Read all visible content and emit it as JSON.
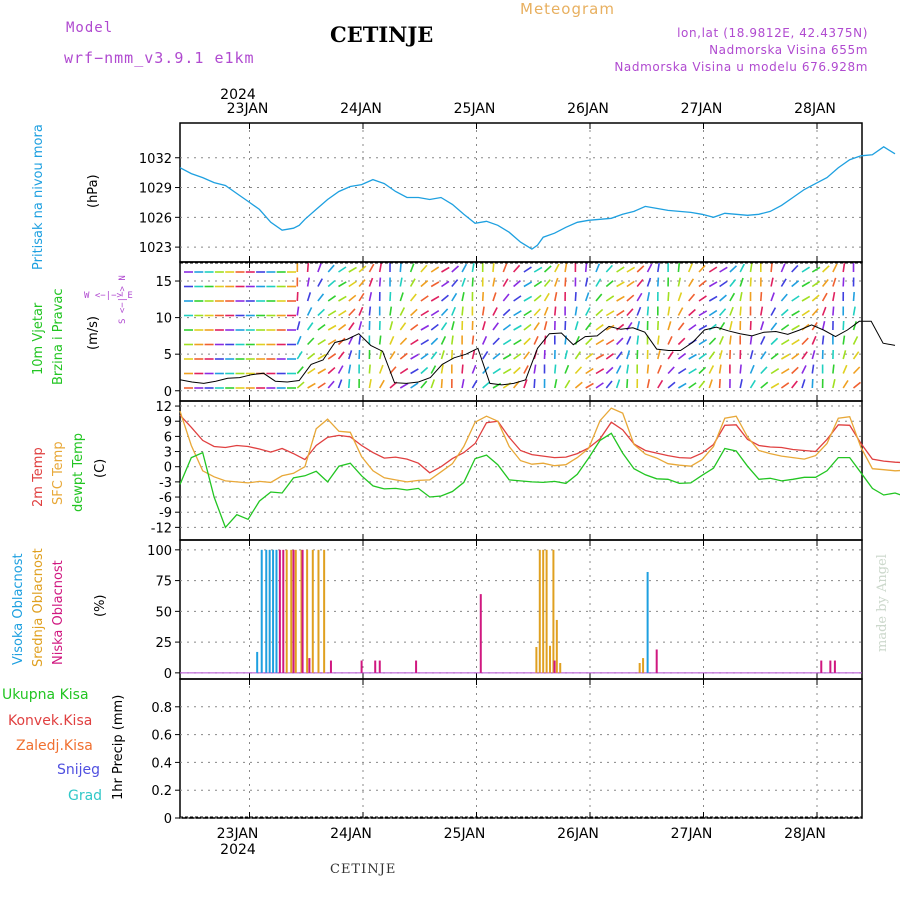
{
  "header": {
    "model_label": "Model",
    "model_version": "wrf−nmm_v3.9.1  e1km",
    "title": "CETINJE",
    "meteogram_label": "Meteogram",
    "lonlat": "lon,lat (18.9812E, 42.4375N)",
    "altitude": "Nadmorska Visina 655m",
    "model_altitude": "Nadmorska Visina u modelu 676.928m"
  },
  "footer": "CETINJE",
  "watermark": "made by Angel",
  "colors": {
    "pressure": "#1ea0e0",
    "wind_label": "#22c522",
    "temp2m": "#e04040",
    "sfc_temp": "#e8a838",
    "dewpt": "#22c522",
    "high_cloud": "#1ea0e0",
    "mid_cloud": "#e0a020",
    "low_cloud": "#d01880",
    "purple": "#b04ad0"
  },
  "axis": {
    "year_top": "2024",
    "year_bottom": "2024",
    "dates": [
      "23JAN",
      "24JAN",
      "25JAN",
      "26JAN",
      "27JAN",
      "28JAN"
    ]
  },
  "panel_labels": {
    "pressure": {
      "name": "Pritisak na nivou mora",
      "unit": "(hPa)"
    },
    "wind": {
      "name1": "10m Vjetar",
      "name2": "Brzina i Pravac",
      "unit": "(m/s)",
      "compass": "W <−|−> E",
      "compass2": "S <−|−> N"
    },
    "temp": {
      "t2m": "2m Temp",
      "sfc": "SFC Temp",
      "dew": "dewpt Temp",
      "unit": "(C)"
    },
    "cloud": {
      "high": "Visoka Oblacnost",
      "mid": "Srednja Oblacnost",
      "low": "Niska Oblacnost",
      "unit": "(%)"
    },
    "precip": {
      "axis": "1hr Precip (mm)",
      "legend": [
        "Ukupna Kisa",
        "Konvek.Kisa",
        "Zaledj.Kisa",
        "Snijeg",
        "Grad"
      ],
      "legend_colors": [
        "#22c522",
        "#e04040",
        "#f07030",
        "#5050e0",
        "#30c8c8"
      ]
    }
  },
  "chart_data": [
    {
      "type": "line",
      "name": "pressure",
      "ylim": [
        1021.5,
        1035.5
      ],
      "yticks": [
        1023,
        1026,
        1029,
        1032
      ],
      "x": [
        0,
        0.1,
        0.2,
        0.3,
        0.4,
        0.5,
        0.6,
        0.7,
        0.8,
        0.9,
        1.0,
        1.05,
        1.1,
        1.2,
        1.3,
        1.4,
        1.5,
        1.6,
        1.7,
        1.8,
        1.9,
        2.0,
        2.1,
        2.2,
        2.3,
        2.4,
        2.5,
        2.6,
        2.7,
        2.8,
        2.9,
        3.0,
        3.1,
        3.15,
        3.2,
        3.3,
        3.4,
        3.5,
        3.6,
        3.7,
        3.8,
        3.9,
        4.0,
        4.1,
        4.2,
        4.3,
        4.4,
        4.5,
        4.6,
        4.7,
        4.8,
        4.9,
        5.0,
        5.1,
        5.2,
        5.3,
        5.4,
        5.5,
        5.6,
        5.7,
        5.8,
        5.9,
        6.0
      ],
      "values": [
        1031,
        1030.4,
        1030.0,
        1029.5,
        1029.2,
        1028.4,
        1027.6,
        1026.8,
        1025.5,
        1024.7,
        1024.9,
        1025.2,
        1025.8,
        1026.8,
        1027.8,
        1028.6,
        1029.1,
        1029.3,
        1029.8,
        1029.4,
        1028.6,
        1028.0,
        1028.0,
        1027.8,
        1028.0,
        1027.3,
        1026.3,
        1025.4,
        1025.6,
        1025.2,
        1024.5,
        1023.5,
        1022.8,
        1023.2,
        1024.0,
        1024.4,
        1025.0,
        1025.5,
        1025.7,
        1025.8,
        1025.9,
        1026.3,
        1026.6,
        1027.1,
        1026.9,
        1026.7,
        1026.6,
        1026.5,
        1026.3,
        1026.0,
        1026.4,
        1026.3,
        1026.2,
        1026.3,
        1026.6,
        1027.2,
        1028.0,
        1028.8,
        1029.4,
        1030.0,
        1031.0,
        1031.8,
        1032.2
      ],
      "x_extra": [
        6.1,
        6.2,
        6.3
      ],
      "values_extra": [
        1032.3,
        1033.1,
        1032.4
      ]
    },
    {
      "type": "line",
      "name": "wind",
      "ylim": [
        -1.4,
        17.6
      ],
      "yticks": [
        0,
        5,
        10,
        15
      ],
      "series": [
        {
          "name": "speed",
          "values": [
            1.5,
            1.2,
            1.0,
            1.3,
            1.7,
            1.8,
            2.2,
            2.4,
            1.3,
            1.2,
            1.4,
            3.6,
            4.2,
            6.6,
            7.0,
            7.8,
            6.2,
            5.4,
            1.1,
            1.0,
            1.2,
            1.8,
            3.6,
            4.5,
            5.0,
            5.8,
            1.0,
            0.8,
            1.0,
            1.5,
            5.8,
            7.8,
            7.9,
            6.3,
            7.4,
            7.5,
            8.8,
            8.4,
            8.6,
            8.0,
            5.7,
            5.5,
            5.5,
            6.6,
            8.3,
            8.7,
            8.2,
            7.8,
            7.5,
            8.0,
            8.1,
            7.7,
            8.3,
            9.0,
            8.3,
            7.4,
            8.3,
            9.5,
            9.5,
            6.5,
            6.2
          ]
        }
      ],
      "x_start": 0,
      "x_step": 0.105
    },
    {
      "type": "line",
      "name": "temperature",
      "ylim": [
        -14.5,
        13
      ],
      "yticks": [
        -12,
        -9,
        -6,
        -3,
        0,
        3,
        6,
        9,
        12
      ],
      "x_step": 0.1,
      "series": [
        {
          "name": "2m Temp",
          "values": [
            10.2,
            7.8,
            5.2,
            4.0,
            3.8,
            4.2,
            4.0,
            3.5,
            2.9,
            3.6,
            2.6,
            1.4,
            4.2,
            5.8,
            6.2,
            5.9,
            4.2,
            2.8,
            1.7,
            1.9,
            1.5,
            0.7,
            -1.2,
            0.0,
            1.6,
            2.8,
            4.6,
            8.7,
            9.0,
            5.8,
            3.2,
            2.4,
            2.1,
            1.8,
            1.9,
            2.6,
            3.7,
            5.5,
            8.8,
            7.3,
            4.5,
            3.2,
            2.7,
            2.2,
            1.8,
            1.7,
            2.7,
            4.4,
            8.2,
            8.3,
            5.4,
            4.2,
            3.9,
            3.8,
            3.4,
            3.2,
            3.0,
            5.4,
            8.3,
            8.2,
            4.6,
            1.5,
            1.1,
            0.9,
            0.8,
            0.4,
            0.6,
            1.2,
            2.0,
            4.2,
            8.4
          ]
        },
        {
          "name": "SFC Temp",
          "values": [
            11.0,
            4.2,
            -0.8,
            -2.0,
            -2.8,
            -3.0,
            -3.2,
            -2.9,
            -3.1,
            -1.8,
            -1.3,
            0.0,
            7.5,
            9.4,
            7.0,
            6.8,
            2.0,
            -0.8,
            -2.2,
            -2.6,
            -3.0,
            -2.7,
            -2.6,
            -1.0,
            0.6,
            4.0,
            8.8,
            10.0,
            9.0,
            4.0,
            1.2,
            0.5,
            0.7,
            0.2,
            0.4,
            1.8,
            3.6,
            9.1,
            11.6,
            10.6,
            4.4,
            2.5,
            1.7,
            0.6,
            0.3,
            0.1,
            1.4,
            4.0,
            9.6,
            10.0,
            5.9,
            3.2,
            2.6,
            2.1,
            1.8,
            1.5,
            2.2,
            4.6,
            9.6,
            9.9,
            3.8,
            -0.4,
            -0.6,
            -0.8,
            -0.7,
            -1.0,
            -0.6,
            0.4,
            2.3,
            5.6,
            10.1
          ]
        },
        {
          "name": "dewpt Temp",
          "values": [
            -3.5,
            1.8,
            2.8,
            -6.0,
            -12.0,
            -9.5,
            -10.4,
            -6.8,
            -5.0,
            -5.2,
            -2.2,
            -1.8,
            -0.9,
            -3.0,
            0.1,
            0.7,
            -1.8,
            -3.8,
            -4.4,
            -4.3,
            -4.6,
            -4.3,
            -6.0,
            -5.8,
            -4.9,
            -3.1,
            1.6,
            2.3,
            0.4,
            -2.6,
            -2.8,
            -3.0,
            -3.1,
            -2.9,
            -3.3,
            -1.5,
            1.7,
            5.2,
            6.6,
            2.7,
            -0.4,
            -1.6,
            -2.4,
            -2.5,
            -3.3,
            -3.2,
            -1.7,
            -0.3,
            3.6,
            3.1,
            0.1,
            -2.5,
            -2.3,
            -2.8,
            -2.5,
            -2.1,
            -2.1,
            -0.8,
            1.8,
            1.8,
            -1.2,
            -4.3,
            -5.6,
            -5.2,
            -6.0,
            -9.7,
            -11.6,
            -12.4,
            -11.2,
            -9.3,
            -6.0
          ]
        }
      ]
    },
    {
      "type": "bar",
      "name": "cloud",
      "ylim": [
        -5,
        108
      ],
      "yticks": [
        0,
        25,
        50,
        75,
        100
      ],
      "series": [
        {
          "name": "Visoka Oblacnost",
          "x": [
            0.68,
            0.72,
            0.76,
            0.79,
            0.82,
            0.85,
            4.12
          ],
          "values": [
            17,
            100,
            100,
            100,
            100,
            100,
            82
          ]
        },
        {
          "name": "Srednja Oblacnost",
          "x": [
            0.94,
            0.98,
            1.02,
            1.07,
            1.12,
            1.17,
            1.22,
            1.27,
            3.14,
            3.17,
            3.2,
            3.23,
            3.26,
            3.29,
            3.32,
            3.35,
            4.05,
            4.08
          ],
          "values": [
            100,
            100,
            100,
            100,
            100,
            100,
            100,
            100,
            21,
            100,
            100,
            100,
            22,
            100,
            43,
            8,
            8,
            12
          ],
          "x_note": "days from 23JAN"
        },
        {
          "name": "Niska Oblacnost",
          "x": [
            0.88,
            0.91,
            1.0,
            1.08,
            1.14,
            1.33,
            1.6,
            1.72,
            1.76,
            2.08,
            2.65,
            3.3,
            4.2,
            5.65,
            5.73,
            5.77
          ],
          "values": [
            100,
            100,
            100,
            100,
            12,
            10,
            10,
            10,
            10,
            10,
            64,
            10,
            19,
            10,
            10,
            10
          ]
        }
      ]
    },
    {
      "type": "bar",
      "name": "precipitation",
      "ylim": [
        0,
        1.0
      ],
      "yticks": [
        0,
        0.2,
        0.4,
        0.6,
        0.8
      ],
      "series": []
    }
  ]
}
